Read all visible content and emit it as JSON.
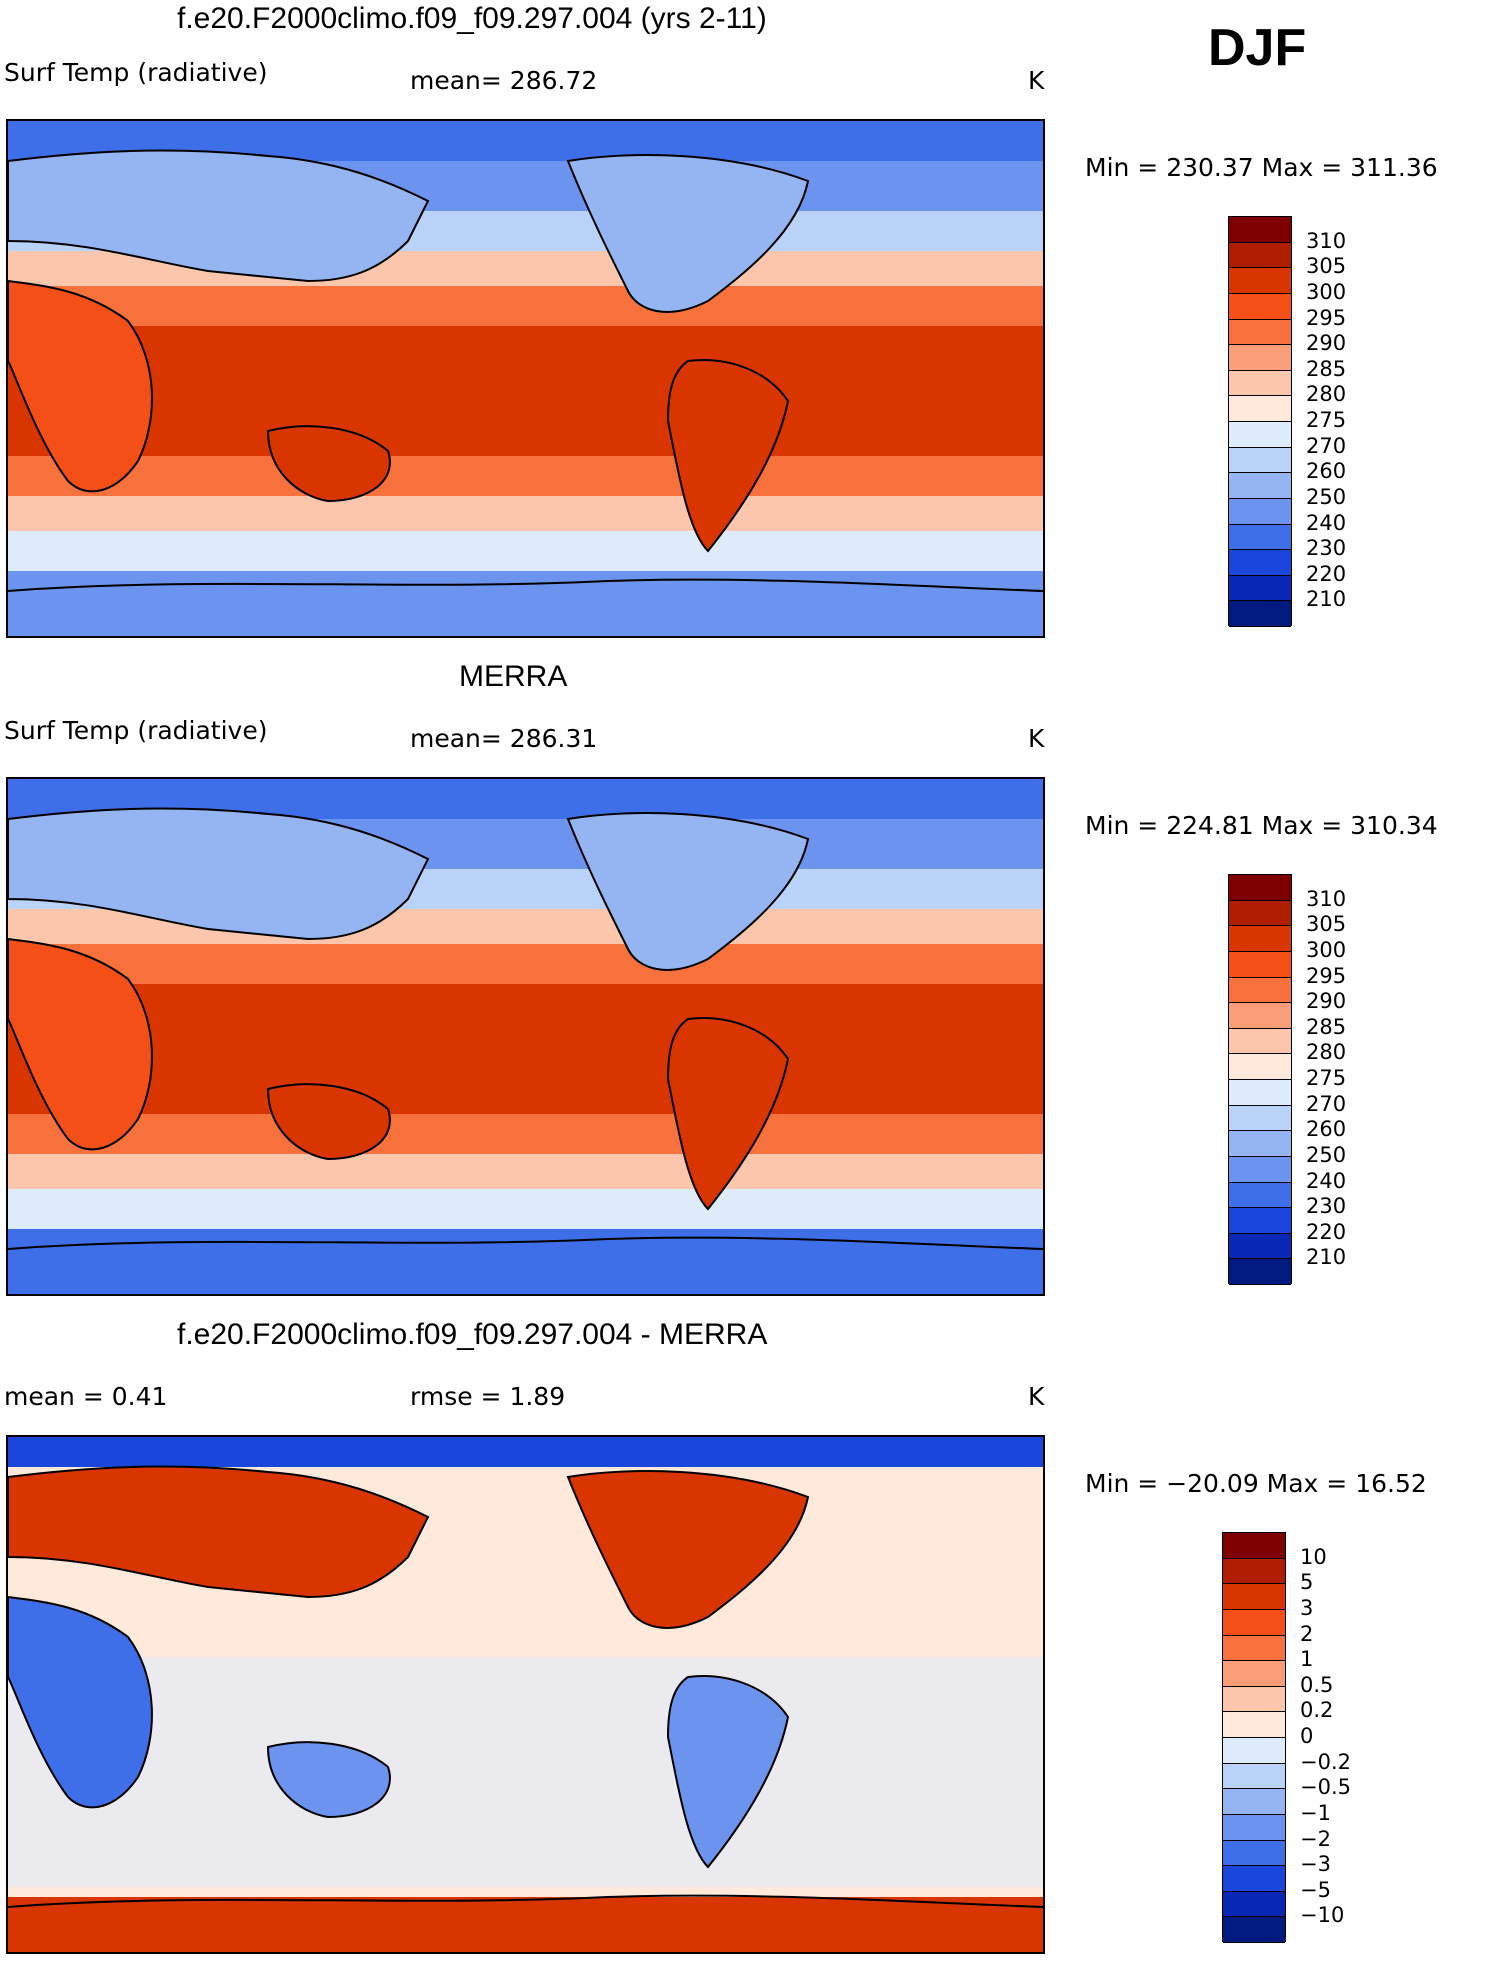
{
  "season": "DJF",
  "panels": [
    {
      "title": "f.e20.F2000climo.f09_f09.297.004 (yrs 2-11)",
      "left_label": "Surf Temp (radiative)",
      "center_label": "mean= 286.72",
      "units": "K",
      "minmax": "Min = 230.37 Max = 311.36",
      "colorbar": {
        "labels": [
          "310",
          "305",
          "300",
          "295",
          "290",
          "285",
          "280",
          "275",
          "270",
          "260",
          "250",
          "240",
          "230",
          "220",
          "210"
        ],
        "colors": [
          "#7f0000",
          "#b01e00",
          "#d83500",
          "#f34f17",
          "#f6713c",
          "#f89d77",
          "#fbc6ac",
          "#fee9da",
          "#ddebfb",
          "#b9d2f7",
          "#95b4f2",
          "#6c94ee",
          "#3f6ee9",
          "#1a46db",
          "#0727b4",
          "#001a80"
        ]
      },
      "chart_data": {
        "type": "heatmap",
        "variable": "Surf Temp (radiative)",
        "units": "K",
        "mean": 286.72,
        "min": 230.37,
        "max": 311.36,
        "levels": [
          210,
          220,
          230,
          240,
          250,
          260,
          270,
          275,
          280,
          285,
          290,
          295,
          300,
          305,
          310
        ]
      }
    },
    {
      "title": "MERRA",
      "left_label": "Surf Temp (radiative)",
      "center_label": "mean= 286.31",
      "units": "K",
      "minmax": "Min = 224.81 Max = 310.34",
      "colorbar": {
        "labels": [
          "310",
          "305",
          "300",
          "295",
          "290",
          "285",
          "280",
          "275",
          "270",
          "260",
          "250",
          "240",
          "230",
          "220",
          "210"
        ],
        "colors": [
          "#7f0000",
          "#b01e00",
          "#d83500",
          "#f34f17",
          "#f6713c",
          "#f89d77",
          "#fbc6ac",
          "#fee9da",
          "#ddebfb",
          "#b9d2f7",
          "#95b4f2",
          "#6c94ee",
          "#3f6ee9",
          "#1a46db",
          "#0727b4",
          "#001a80"
        ]
      },
      "chart_data": {
        "type": "heatmap",
        "variable": "Surf Temp (radiative)",
        "units": "K",
        "mean": 286.31,
        "min": 224.81,
        "max": 310.34,
        "levels": [
          210,
          220,
          230,
          240,
          250,
          260,
          270,
          275,
          280,
          285,
          290,
          295,
          300,
          305,
          310
        ]
      }
    },
    {
      "title": "f.e20.F2000climo.f09_f09.297.004 - MERRA",
      "left_label": "mean =     0.41",
      "center_label": "rmse =     1.89",
      "units": "K",
      "minmax": "Min = −20.09 Max =   16.52",
      "colorbar": {
        "labels": [
          "10",
          "5",
          "3",
          "2",
          "1",
          "0.5",
          "0.2",
          "0",
          "−0.2",
          "−0.5",
          "−1",
          "−2",
          "−3",
          "−5",
          "−10"
        ],
        "colors": [
          "#7f0000",
          "#b01e00",
          "#d83500",
          "#f34f17",
          "#f6713c",
          "#f89d77",
          "#fbc6ac",
          "#fee9da",
          "#ddebfb",
          "#b9d2f7",
          "#95b4f2",
          "#6c94ee",
          "#3f6ee9",
          "#1a46db",
          "#0727b4",
          "#001a80"
        ]
      },
      "chart_data": {
        "type": "heatmap",
        "variable": "difference",
        "units": "K",
        "mean": 0.41,
        "rmse": 1.89,
        "min": -20.09,
        "max": 16.52,
        "levels": [
          -10,
          -5,
          -3,
          -2,
          -1,
          -0.5,
          -0.2,
          0,
          0.2,
          0.5,
          1,
          2,
          3,
          5,
          10
        ]
      }
    }
  ]
}
